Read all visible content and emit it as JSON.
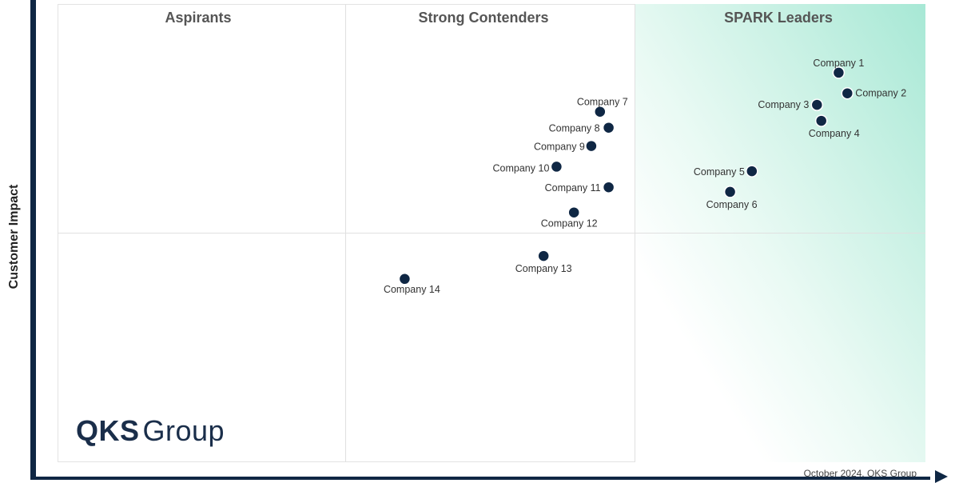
{
  "chart_data": {
    "type": "scatter",
    "title": "",
    "xlabel": "",
    "ylabel": "Customer Impact",
    "quadrants": [
      "Aspirants",
      "Strong Contenders",
      "SPARK Leaders"
    ],
    "points": [
      {
        "label": "Company 1",
        "x": 90.0,
        "y": 85.0
      },
      {
        "label": "Company 2",
        "x": 91.0,
        "y": 80.5
      },
      {
        "label": "Company 3",
        "x": 87.5,
        "y": 78.0
      },
      {
        "label": "Company 4",
        "x": 88.0,
        "y": 74.5
      },
      {
        "label": "Company 5",
        "x": 80.0,
        "y": 63.5
      },
      {
        "label": "Company 6",
        "x": 77.5,
        "y": 59.0
      },
      {
        "label": "Company 7",
        "x": 62.5,
        "y": 76.5
      },
      {
        "label": "Company 8",
        "x": 63.5,
        "y": 73.0
      },
      {
        "label": "Company 9",
        "x": 61.5,
        "y": 69.0
      },
      {
        "label": "Company 10",
        "x": 57.5,
        "y": 64.5
      },
      {
        "label": "Company 11",
        "x": 63.5,
        "y": 60.0
      },
      {
        "label": "Company 12",
        "x": 59.5,
        "y": 54.5
      },
      {
        "label": "Company 13",
        "x": 56.0,
        "y": 45.0
      },
      {
        "label": "Company 14",
        "x": 40.0,
        "y": 40.0
      }
    ],
    "xlim": [
      0,
      100
    ],
    "ylim": [
      0,
      100
    ],
    "grid": false,
    "legend": "none"
  },
  "logo": {
    "part1": "QKS",
    "part2": "Group"
  },
  "footer": "October 2024, QKS Group",
  "colors": {
    "marker": "#0f2744",
    "axis": "#0f2744",
    "leaders_gradient": "#a7e8d5"
  }
}
